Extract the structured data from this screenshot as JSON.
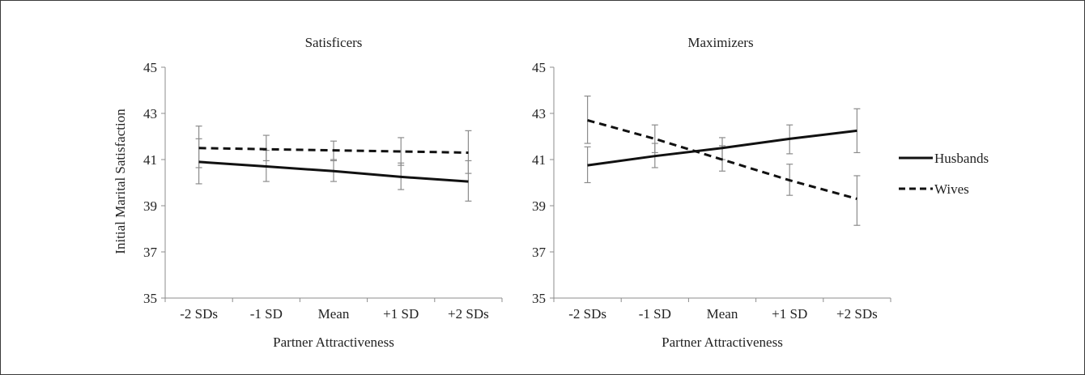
{
  "chart_data": [
    {
      "type": "line",
      "title": "Satisficers",
      "xlabel": "Partner Attractiveness",
      "ylabel": "Initial Marital Satisfaction",
      "categories": [
        "-2 SDs",
        "-1 SD",
        "Mean",
        "+1 SD",
        "+2 SDs"
      ],
      "ylim": [
        35,
        45
      ],
      "yticks": [
        35,
        37,
        39,
        41,
        43,
        45
      ],
      "series": [
        {
          "name": "Husbands",
          "style": "solid",
          "values": [
            40.9,
            40.7,
            40.5,
            40.25,
            40.05
          ],
          "err_low": [
            39.95,
            40.05,
            40.05,
            39.7,
            39.2
          ],
          "err_high": [
            41.9,
            41.4,
            41.0,
            40.85,
            40.95
          ]
        },
        {
          "name": "Wives",
          "style": "dashed",
          "values": [
            41.5,
            41.45,
            41.4,
            41.35,
            41.3
          ],
          "err_low": [
            40.65,
            40.95,
            40.95,
            40.75,
            40.4
          ],
          "err_high": [
            42.45,
            42.05,
            41.8,
            41.95,
            42.25
          ]
        }
      ]
    },
    {
      "type": "line",
      "title": "Maximizers",
      "xlabel": "Partner Attractiveness",
      "ylabel": "",
      "categories": [
        "-2 SDs",
        "-1 SD",
        "Mean",
        "+1 SD",
        "+2 SDs"
      ],
      "ylim": [
        35,
        45
      ],
      "yticks": [
        35,
        37,
        39,
        41,
        43,
        45
      ],
      "series": [
        {
          "name": "Husbands",
          "style": "solid",
          "values": [
            40.75,
            41.15,
            41.5,
            41.9,
            42.25
          ],
          "err_low": [
            40.0,
            40.65,
            41.0,
            41.25,
            41.3
          ],
          "err_high": [
            41.55,
            41.7,
            41.95,
            42.5,
            43.2
          ]
        },
        {
          "name": "Wives",
          "style": "dashed",
          "values": [
            42.7,
            41.9,
            41.0,
            40.1,
            39.3
          ],
          "err_low": [
            41.7,
            41.3,
            40.5,
            39.45,
            38.15
          ],
          "err_high": [
            43.75,
            42.5,
            41.6,
            40.8,
            40.3
          ]
        }
      ]
    }
  ],
  "legend": {
    "placement": "right",
    "items": [
      {
        "label": "Husbands",
        "style": "solid"
      },
      {
        "label": "Wives",
        "style": "dashed"
      }
    ]
  },
  "colors": {
    "line": "#111111",
    "errorbar": "#8c8c8c",
    "axis": "#8c8c8c",
    "text": "#222222"
  }
}
